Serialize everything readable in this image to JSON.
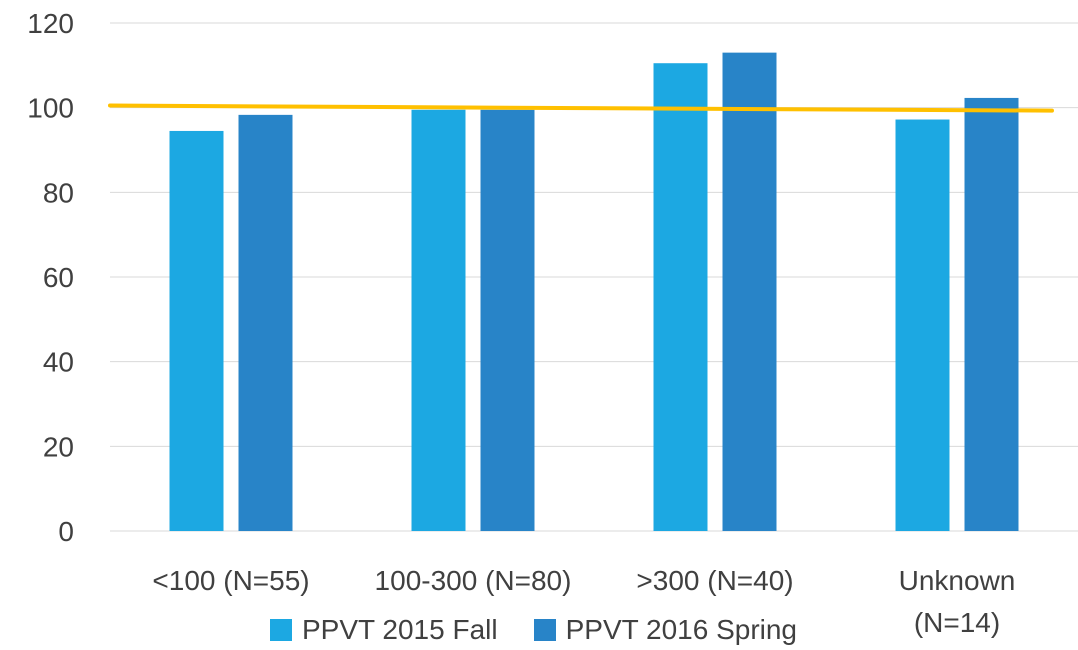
{
  "chart_data": {
    "type": "bar",
    "title": "",
    "xlabel": "",
    "ylabel": "",
    "ylim": [
      0,
      120
    ],
    "yticks": [
      "0",
      "20",
      "40",
      "60",
      "80",
      "100",
      "120"
    ],
    "categories": [
      [
        "<100 (N=55)"
      ],
      [
        "100-300 (N=80)"
      ],
      [
        ">300 (N=40)"
      ],
      [
        "Unknown",
        "(N=14)"
      ]
    ],
    "series": [
      {
        "name": "PPVT 2015 Fall",
        "color": "#1CA8E2",
        "values": [
          94.5,
          99.5,
          110.5,
          97.2
        ]
      },
      {
        "name": "PPVT 2016 Spring",
        "color": "#2884C8",
        "values": [
          98.3,
          99.5,
          113,
          102.3
        ]
      }
    ],
    "reference_line": {
      "color": "#FFC000",
      "values": [
        100.5,
        99.3
      ]
    },
    "grid": "horizontal",
    "legend_position": "bottom"
  }
}
